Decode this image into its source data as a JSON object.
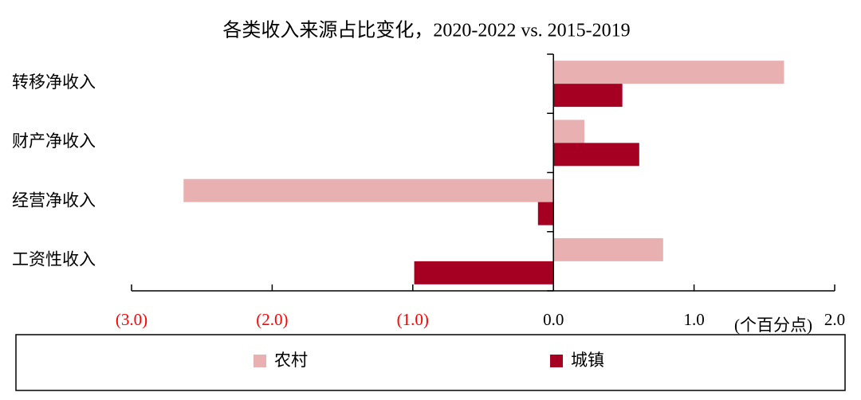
{
  "chart_data": {
    "type": "hbar",
    "title": "各类收入来源占比变化，2020-2022 vs. 2015-2019",
    "x_unit_label": "(个百分点)",
    "categories": [
      "转移净收入",
      "财产净收入",
      "经营净收入",
      "工资性收入"
    ],
    "series": [
      {
        "name": "农村",
        "color": "#e8b0b0",
        "values": [
          1.64,
          0.22,
          -2.63,
          0.78
        ]
      },
      {
        "name": "城镇",
        "color": "#a50021",
        "values": [
          0.49,
          0.61,
          -0.11,
          -0.99
        ]
      }
    ],
    "xlim": [
      -3,
      2
    ],
    "xticks": [
      {
        "value": -3,
        "label": "(3.0)"
      },
      {
        "value": -2,
        "label": "(2.0)"
      },
      {
        "value": -1,
        "label": "(1.0)"
      },
      {
        "value": 0,
        "label": "0.0"
      },
      {
        "value": 1,
        "label": "1.0"
      },
      {
        "value": 2,
        "label": "2.0"
      }
    ],
    "negative_tick_color": "#ff0000",
    "legend": "bottom",
    "grid": false
  }
}
